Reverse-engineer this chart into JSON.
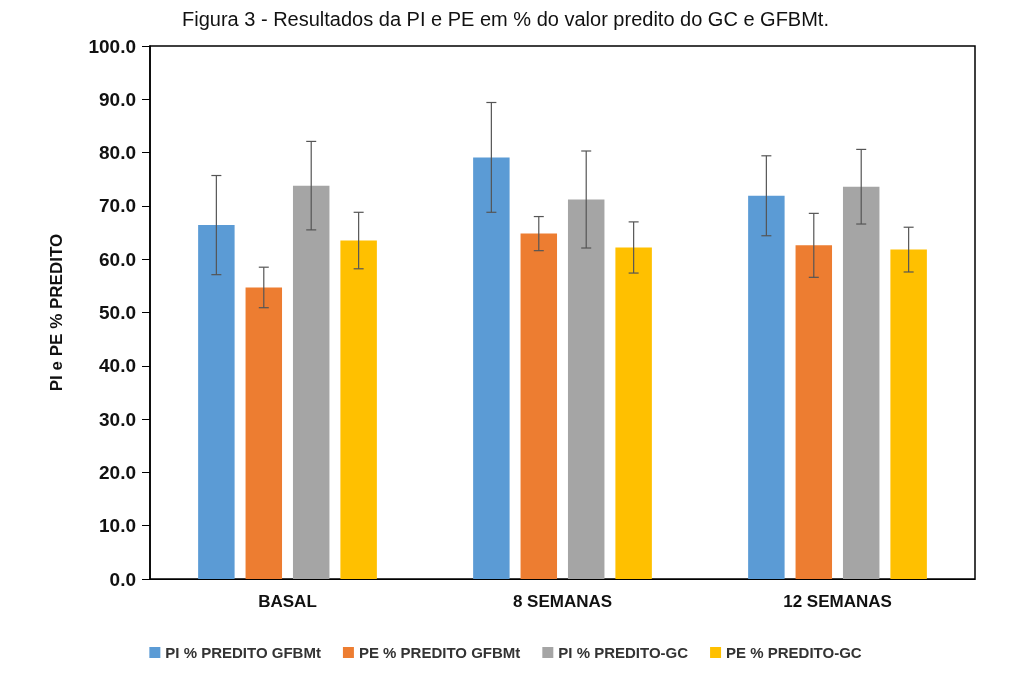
{
  "chart_data": {
    "type": "bar",
    "title": "Figura 3 - Resultados da PI e PE em % do valor predito do GC e GFBMt.",
    "ylabel": "PI e PE % PREDITO",
    "categories": [
      "BASAL",
      "8 SEMANAS",
      "12 SEMANAS"
    ],
    "series": [
      {
        "name": "PI % PREDITO GFBMt",
        "color": "#5b9bd5",
        "values": [
          66.4,
          79.1,
          71.9
        ],
        "errors": [
          9.3,
          10.3,
          7.5
        ]
      },
      {
        "name": "PE % PREDITO GFBMt",
        "color": "#ed7d31",
        "values": [
          54.7,
          64.8,
          62.6
        ],
        "errors": [
          3.8,
          3.2,
          6.0
        ]
      },
      {
        "name": "PI % PREDITO-GC",
        "color": "#a5a5a5",
        "values": [
          73.8,
          71.2,
          73.6
        ],
        "errors": [
          8.3,
          9.1,
          7.0
        ]
      },
      {
        "name": "PE % PREDITO-GC",
        "color": "#ffc000",
        "values": [
          63.5,
          62.2,
          61.8
        ],
        "errors": [
          5.3,
          4.8,
          4.2
        ]
      }
    ],
    "ylim": [
      0,
      100
    ],
    "yticks": [
      {
        "value": 0,
        "label": "0.0"
      },
      {
        "value": 10,
        "label": "10.0"
      },
      {
        "value": 20,
        "label": "20.0"
      },
      {
        "value": 30,
        "label": "30.0"
      },
      {
        "value": 40,
        "label": "40.0"
      },
      {
        "value": 50,
        "label": "50.0"
      },
      {
        "value": 60,
        "label": "60.0"
      },
      {
        "value": 70,
        "label": "70.0"
      },
      {
        "value": 80,
        "label": "80.0"
      },
      {
        "value": 90,
        "label": "90.0"
      },
      {
        "value": 100,
        "label": "100.0"
      }
    ],
    "grid": false,
    "legend": "bottom"
  }
}
